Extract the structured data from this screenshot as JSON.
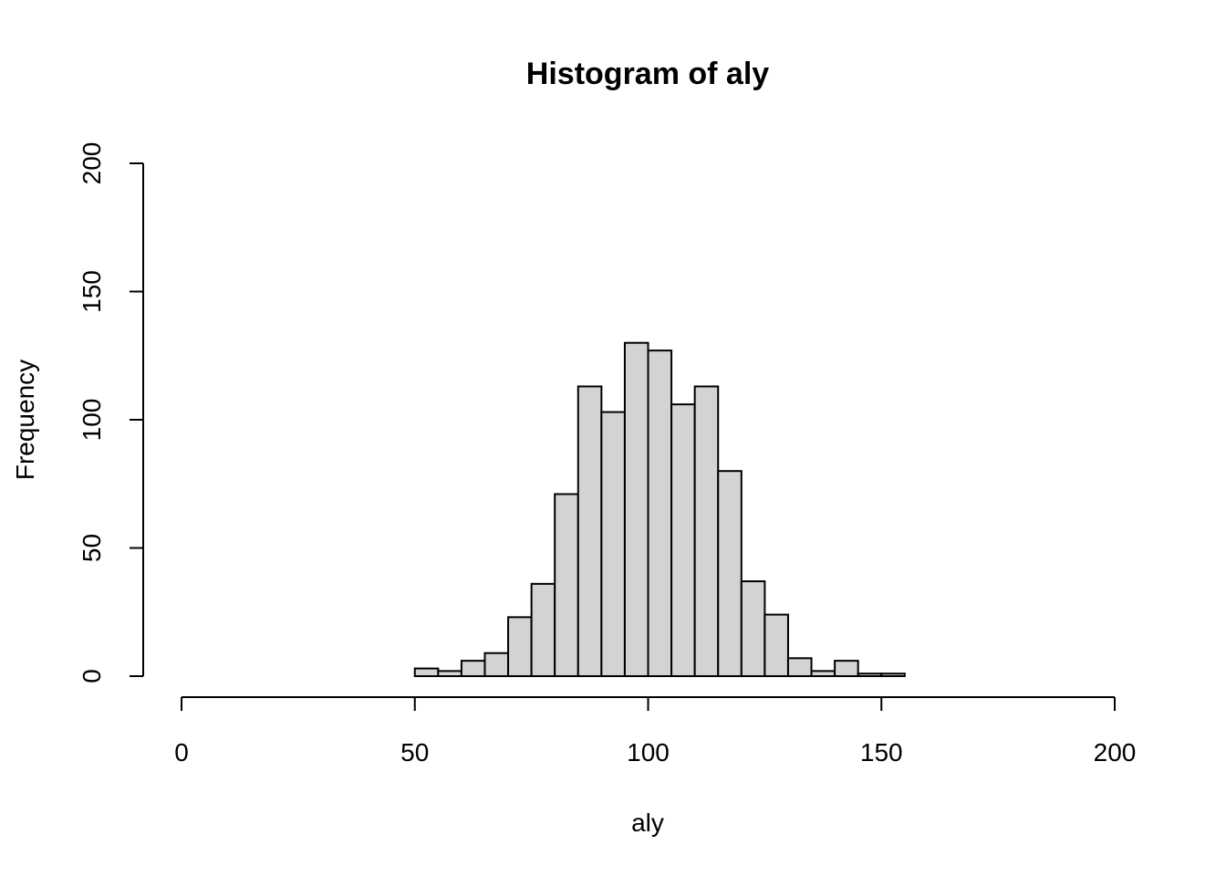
{
  "chart_data": {
    "type": "bar",
    "title": "Histogram of aly",
    "xlabel": "aly",
    "ylabel": "Frequency",
    "xlim": [
      0,
      200
    ],
    "ylim": [
      0,
      200
    ],
    "x_ticks": [
      0,
      50,
      100,
      150,
      200
    ],
    "y_ticks": [
      0,
      50,
      100,
      150,
      200
    ],
    "bin_width": 5,
    "bins": [
      {
        "start": 50,
        "end": 55,
        "count": 3
      },
      {
        "start": 55,
        "end": 60,
        "count": 2
      },
      {
        "start": 60,
        "end": 65,
        "count": 6
      },
      {
        "start": 65,
        "end": 70,
        "count": 9
      },
      {
        "start": 70,
        "end": 75,
        "count": 23
      },
      {
        "start": 75,
        "end": 80,
        "count": 36
      },
      {
        "start": 80,
        "end": 85,
        "count": 71
      },
      {
        "start": 85,
        "end": 90,
        "count": 113
      },
      {
        "start": 90,
        "end": 95,
        "count": 103
      },
      {
        "start": 95,
        "end": 100,
        "count": 130
      },
      {
        "start": 100,
        "end": 105,
        "count": 127
      },
      {
        "start": 105,
        "end": 110,
        "count": 106
      },
      {
        "start": 110,
        "end": 115,
        "count": 113
      },
      {
        "start": 115,
        "end": 120,
        "count": 80
      },
      {
        "start": 120,
        "end": 125,
        "count": 37
      },
      {
        "start": 125,
        "end": 130,
        "count": 24
      },
      {
        "start": 130,
        "end": 135,
        "count": 7
      },
      {
        "start": 135,
        "end": 140,
        "count": 2
      },
      {
        "start": 140,
        "end": 145,
        "count": 6
      },
      {
        "start": 145,
        "end": 150,
        "count": 1
      },
      {
        "start": 150,
        "end": 155,
        "count": 1
      }
    ],
    "grid": false,
    "colors": {
      "bar_fill": "#d3d3d3",
      "bar_stroke": "#000000"
    }
  }
}
